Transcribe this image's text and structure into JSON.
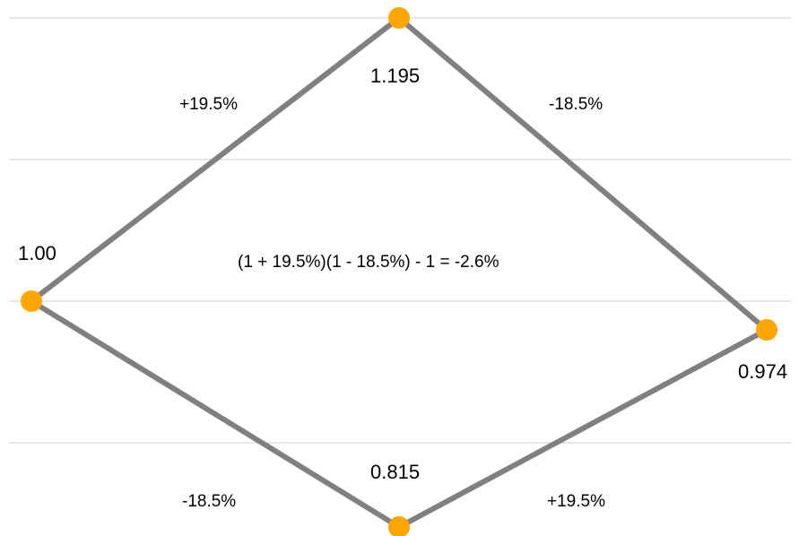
{
  "diagram": {
    "nodes": {
      "start": "1.00",
      "top": "1.195",
      "right": "0.974",
      "bottom": "0.815"
    },
    "edges": {
      "start_to_top": "+19.5%",
      "top_to_right": "-18.5%",
      "start_to_bottom": "-18.5%",
      "bottom_to_right": "+19.5%"
    },
    "formula": "(1 + 19.5%)(1 - 18.5%) - 1 = -2.6%"
  },
  "colors": {
    "line": "#808080",
    "node": "#FFA500",
    "grid": "#cccccc"
  }
}
